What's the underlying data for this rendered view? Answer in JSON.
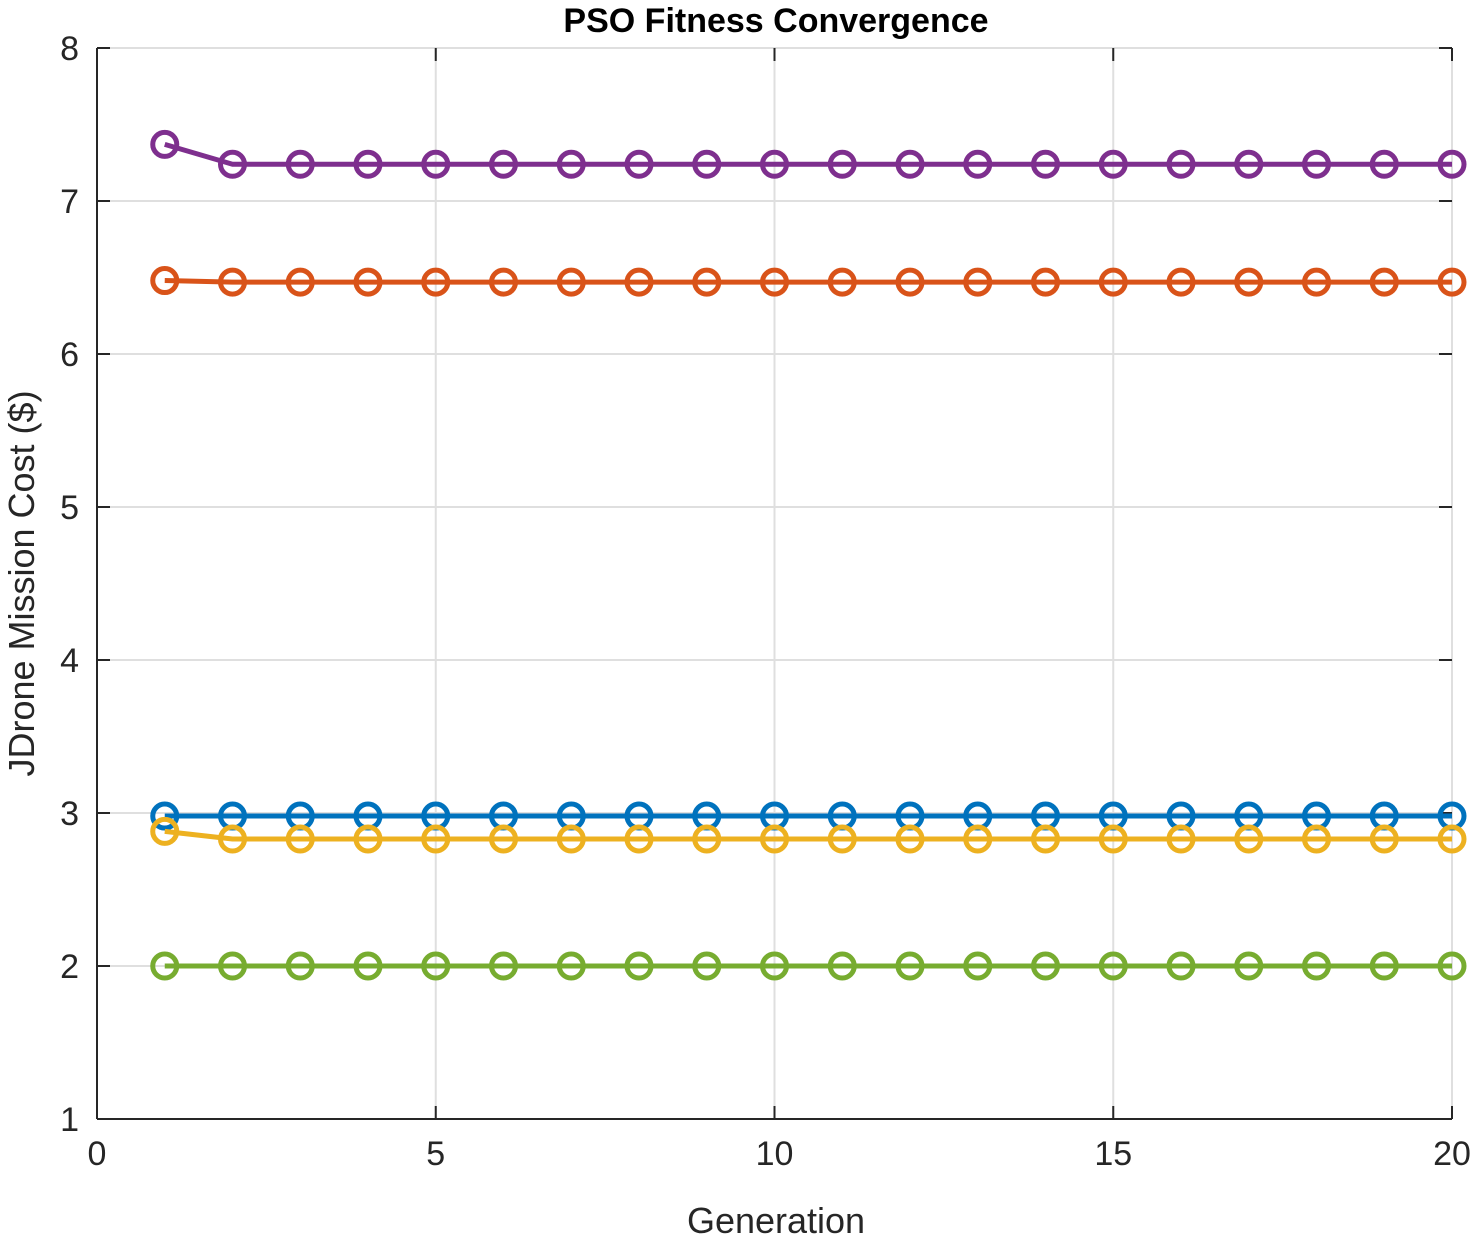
{
  "chart_data": {
    "type": "line",
    "title": "PSO Fitness Convergence",
    "xlabel": "Generation",
    "ylabel": "JDrone Mission Cost ($)",
    "xlim": [
      0,
      20
    ],
    "ylim": [
      1,
      8
    ],
    "xticks": [
      "0",
      "5",
      "10",
      "15",
      "20"
    ],
    "yticks": [
      "1",
      "2",
      "3",
      "4",
      "5",
      "6",
      "7",
      "8"
    ],
    "grid": true,
    "legend": "none",
    "marker": "circle",
    "x": [
      1,
      2,
      3,
      4,
      5,
      6,
      7,
      8,
      9,
      10,
      11,
      12,
      13,
      14,
      15,
      16,
      17,
      18,
      19,
      20
    ],
    "series": [
      {
        "color": "#0072BD",
        "values": [
          2.98,
          2.98,
          2.98,
          2.98,
          2.98,
          2.98,
          2.98,
          2.98,
          2.98,
          2.98,
          2.98,
          2.98,
          2.98,
          2.98,
          2.98,
          2.98,
          2.98,
          2.98,
          2.98,
          2.98
        ]
      },
      {
        "color": "#D95319",
        "values": [
          6.48,
          6.47,
          6.47,
          6.47,
          6.47,
          6.47,
          6.47,
          6.47,
          6.47,
          6.47,
          6.47,
          6.47,
          6.47,
          6.47,
          6.47,
          6.47,
          6.47,
          6.47,
          6.47,
          6.47
        ]
      },
      {
        "color": "#EDB120",
        "values": [
          2.88,
          2.83,
          2.83,
          2.83,
          2.83,
          2.83,
          2.83,
          2.83,
          2.83,
          2.83,
          2.83,
          2.83,
          2.83,
          2.83,
          2.83,
          2.83,
          2.83,
          2.83,
          2.83,
          2.83
        ]
      },
      {
        "color": "#7E2F8E",
        "values": [
          7.37,
          7.24,
          7.24,
          7.24,
          7.24,
          7.24,
          7.24,
          7.24,
          7.24,
          7.24,
          7.24,
          7.24,
          7.24,
          7.24,
          7.24,
          7.24,
          7.24,
          7.24,
          7.24,
          7.24
        ]
      },
      {
        "color": "#77AC30",
        "values": [
          2.0,
          2.0,
          2.0,
          2.0,
          2.0,
          2.0,
          2.0,
          2.0,
          2.0,
          2.0,
          2.0,
          2.0,
          2.0,
          2.0,
          2.0,
          2.0,
          2.0,
          2.0,
          2.0,
          2.0
        ]
      }
    ]
  }
}
